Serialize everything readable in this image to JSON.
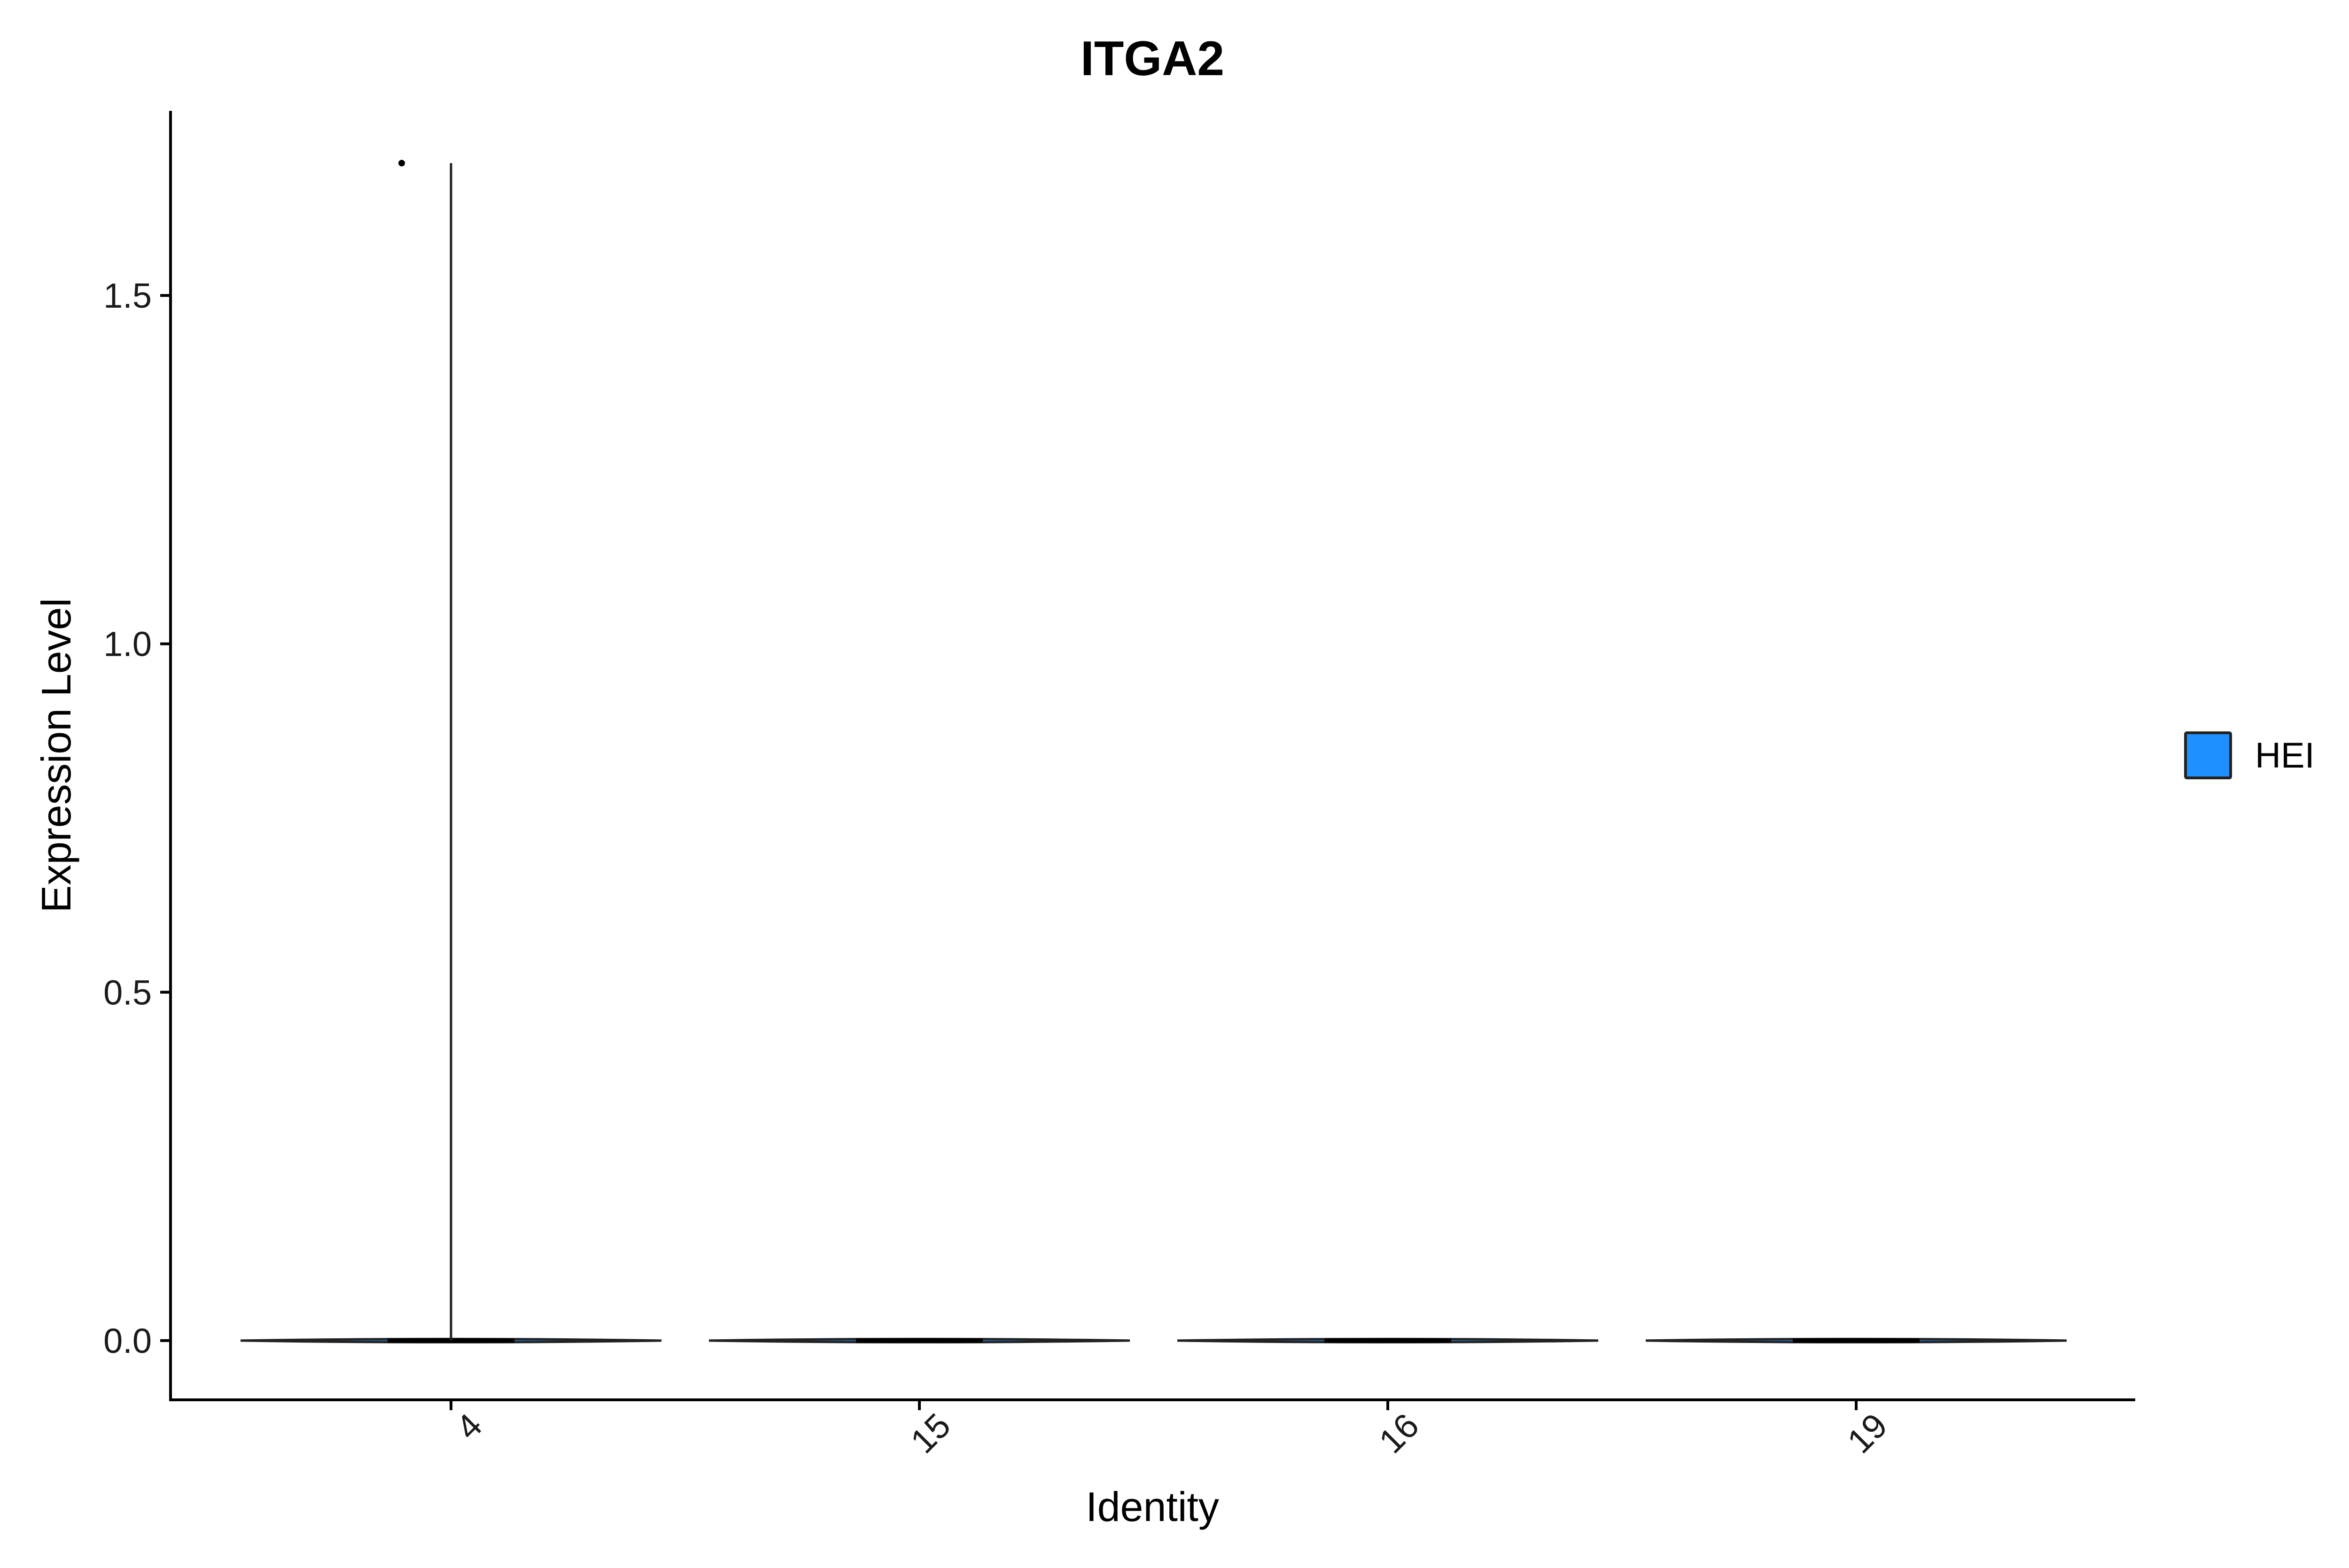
{
  "chart_data": {
    "type": "violin",
    "title": "ITGA2",
    "xlabel": "Identity",
    "ylabel": "Expression Level",
    "categories": [
      "4",
      "15",
      "16",
      "19"
    ],
    "y_ticks": [
      "0.0",
      "0.5",
      "1.0",
      "1.5"
    ],
    "y_tick_values": [
      0.0,
      0.5,
      1.0,
      1.5
    ],
    "ylim": [
      -0.085,
      1.765
    ],
    "x_tick_label_rotation_deg": 45,
    "grid": false,
    "legend": {
      "placement": "right",
      "entries": [
        {
          "name": "HEI",
          "color": "#1E90FF"
        }
      ]
    },
    "series": [
      {
        "name": "HEI",
        "color": "#1E90FF",
        "violins": [
          {
            "category": "4",
            "min": 0.0,
            "max": 1.69,
            "outlier_points": [
              1.69
            ]
          },
          {
            "category": "15",
            "min": 0.0,
            "max": 0.0,
            "outlier_points": []
          },
          {
            "category": "16",
            "min": 0.0,
            "max": 0.0,
            "outlier_points": []
          },
          {
            "category": "19",
            "min": 0.0,
            "max": 0.0,
            "outlier_points": []
          }
        ]
      }
    ]
  }
}
